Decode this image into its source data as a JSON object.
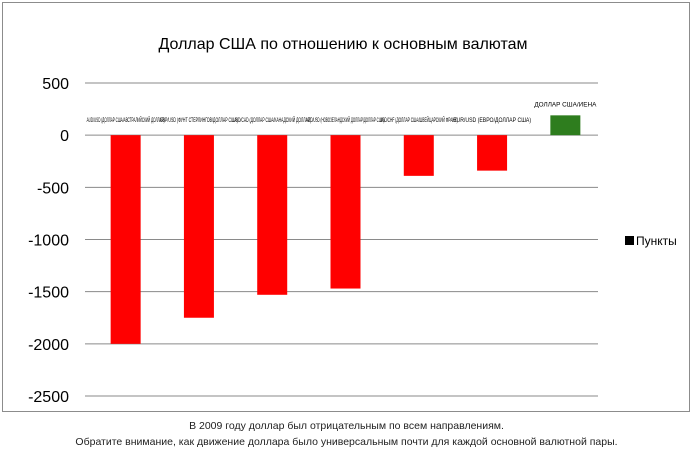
{
  "chart_data": {
    "type": "bar",
    "title": "Доллар США по отношению к основным валютам",
    "categories": [
      "AUD/USD (ДОЛЛАР США/АВСТРАЛИЙСКИЙ ДОЛЛАР)",
      "GBP/USD (ФУНТ СТЕРЛИНГОВ/ДОЛЛАР США)",
      "USD/CAD (ДОЛЛАР США/КАНАДСКИЙ ДОЛЛАР)",
      "NZD/USD (НОВОЗЕЛАНДСКИЙ ДОЛЛАР/ДОЛЛАР США)",
      "USD/CHF (ДОЛЛАР США/ШВЕЙЦАРСКИЙ ФРАНК)",
      "EUR/USD (ЕВРО/ДОЛЛАР США)",
      "ДОЛЛАР США/ИЕНА"
    ],
    "values": [
      -2000,
      -1750,
      -1530,
      -1470,
      -390,
      -340,
      190
    ],
    "ylim": [
      -2500,
      500
    ],
    "yticks": [
      "500",
      "0",
      "-500",
      "-1000",
      "-1500",
      "-2000",
      "-2500"
    ],
    "ytick_values": [
      500,
      0,
      -500,
      -1000,
      -1500,
      -2000,
      -2500
    ],
    "grid": true,
    "legend": {
      "placement": "right",
      "label": "Пункты",
      "color": "#000000"
    },
    "colors": {
      "negative": "#ff0000",
      "positive": "#2e7d1e"
    }
  },
  "caption": {
    "line1": "В 2009 году доллар был отрицательным по всем направлениям.",
    "line2": "Обратите внимание, как движение доллара было универсальным почти для каждой основной валютной пары."
  }
}
